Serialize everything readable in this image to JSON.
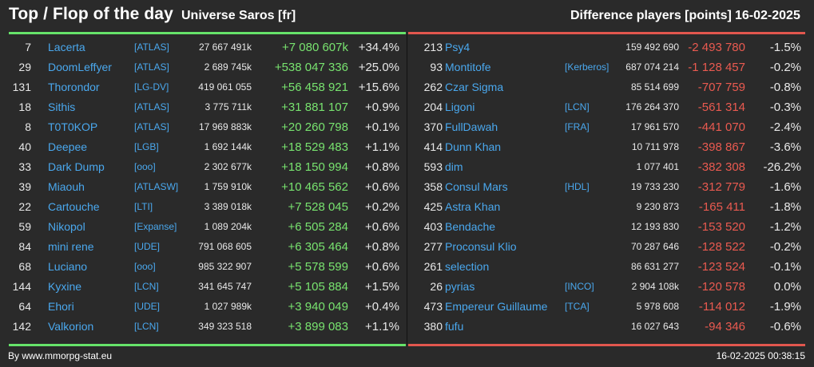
{
  "header": {
    "title": "Top / Flop of the day",
    "universe": "Universe Saros [fr]",
    "difference_label": "Difference players [points]",
    "date": "16-02-2025"
  },
  "colors": {
    "background": "#2a2a2a",
    "top_accent": "#66e36a",
    "flop_accent": "#e2574e",
    "positive_diff": "#78e36f",
    "negative_diff": "#ea5a50",
    "link": "#4aa8ee"
  },
  "top": [
    {
      "rank": "7",
      "name": "Lacerta",
      "alliance": "[ATLAS]",
      "points": "27 667 491k",
      "diff": "+7 080 607k",
      "pct": "+34.4%"
    },
    {
      "rank": "29",
      "name": "DoomLeffyer",
      "alliance": "[ATLAS]",
      "points": "2 689 745k",
      "diff": "+538 047 336",
      "pct": "+25.0%"
    },
    {
      "rank": "131",
      "name": "Thorondor",
      "alliance": "[LG-DV]",
      "points": "419 061 055",
      "diff": "+56 458 921",
      "pct": "+15.6%"
    },
    {
      "rank": "18",
      "name": "Sithis",
      "alliance": "[ATLAS]",
      "points": "3 775 711k",
      "diff": "+31 881 107",
      "pct": "+0.9%"
    },
    {
      "rank": "8",
      "name": "T0T0KOP",
      "alliance": "[ATLAS]",
      "points": "17 969 883k",
      "diff": "+20 260 798",
      "pct": "+0.1%"
    },
    {
      "rank": "40",
      "name": "Deepee",
      "alliance": "[LGB]",
      "points": "1 692 144k",
      "diff": "+18 529 483",
      "pct": "+1.1%"
    },
    {
      "rank": "33",
      "name": "Dark Dump",
      "alliance": "[ooo]",
      "points": "2 302 677k",
      "diff": "+18 150 994",
      "pct": "+0.8%"
    },
    {
      "rank": "39",
      "name": "Miaouh",
      "alliance": "[ATLASW]",
      "points": "1 759 910k",
      "diff": "+10 465 562",
      "pct": "+0.6%"
    },
    {
      "rank": "22",
      "name": "Cartouche",
      "alliance": "[LTI]",
      "points": "3 389 018k",
      "diff": "+7 528 045",
      "pct": "+0.2%"
    },
    {
      "rank": "59",
      "name": "Nikopol",
      "alliance": "[Expanse]",
      "points": "1 089 204k",
      "diff": "+6 505 284",
      "pct": "+0.6%"
    },
    {
      "rank": "84",
      "name": "mini rene",
      "alliance": "[UDE]",
      "points": "791 068 605",
      "diff": "+6 305 464",
      "pct": "+0.8%"
    },
    {
      "rank": "68",
      "name": "Luciano",
      "alliance": "[ooo]",
      "points": "985 322 907",
      "diff": "+5 578 599",
      "pct": "+0.6%"
    },
    {
      "rank": "144",
      "name": "Kyxine",
      "alliance": "[LCN]",
      "points": "341 645 747",
      "diff": "+5 105 884",
      "pct": "+1.5%"
    },
    {
      "rank": "64",
      "name": "Ehori",
      "alliance": "[UDE]",
      "points": "1 027 989k",
      "diff": "+3 940 049",
      "pct": "+0.4%"
    },
    {
      "rank": "142",
      "name": "Valkorion",
      "alliance": "[LCN]",
      "points": "349 323 518",
      "diff": "+3 899 083",
      "pct": "+1.1%"
    }
  ],
  "flop": [
    {
      "rank": "213",
      "name": "Psy4",
      "alliance": "",
      "points": "159 492 690",
      "diff": "-2 493 780",
      "pct": "-1.5%"
    },
    {
      "rank": "93",
      "name": "Montitofe",
      "alliance": "[Kerberos]",
      "points": "687 074 214",
      "diff": "-1 128 457",
      "pct": "-0.2%"
    },
    {
      "rank": "262",
      "name": "Czar Sigma",
      "alliance": "",
      "points": "85 514 699",
      "diff": "-707 759",
      "pct": "-0.8%"
    },
    {
      "rank": "204",
      "name": "Ligoni",
      "alliance": "[LCN]",
      "points": "176 264 370",
      "diff": "-561 314",
      "pct": "-0.3%"
    },
    {
      "rank": "370",
      "name": "FullDawah",
      "alliance": "[FRA]",
      "points": "17 961 570",
      "diff": "-441 070",
      "pct": "-2.4%"
    },
    {
      "rank": "414",
      "name": "Dunn Khan",
      "alliance": "",
      "points": "10 711 978",
      "diff": "-398 867",
      "pct": "-3.6%"
    },
    {
      "rank": "593",
      "name": "dim",
      "alliance": "",
      "points": "1 077 401",
      "diff": "-382 308",
      "pct": "-26.2%"
    },
    {
      "rank": "358",
      "name": "Consul Mars",
      "alliance": "[HDL]",
      "points": "19 733 230",
      "diff": "-312 779",
      "pct": "-1.6%"
    },
    {
      "rank": "425",
      "name": "Astra Khan",
      "alliance": "",
      "points": "9 230 873",
      "diff": "-165 411",
      "pct": "-1.8%"
    },
    {
      "rank": "403",
      "name": "Bendache",
      "alliance": "",
      "points": "12 193 830",
      "diff": "-153 520",
      "pct": "-1.2%"
    },
    {
      "rank": "277",
      "name": "Proconsul Klio",
      "alliance": "",
      "points": "70 287 646",
      "diff": "-128 522",
      "pct": "-0.2%"
    },
    {
      "rank": "261",
      "name": "selection",
      "alliance": "",
      "points": "86 631 277",
      "diff": "-123 524",
      "pct": "-0.1%"
    },
    {
      "rank": "26",
      "name": "pyrias",
      "alliance": "[INCO]",
      "points": "2 904 108k",
      "diff": "-120 578",
      "pct": "0.0%"
    },
    {
      "rank": "473",
      "name": "Empereur Guillaume",
      "alliance": "[TCA]",
      "points": "5 978 608",
      "diff": "-114 012",
      "pct": "-1.9%"
    },
    {
      "rank": "380",
      "name": "fufu",
      "alliance": "",
      "points": "16 027 643",
      "diff": "-94 346",
      "pct": "-0.6%"
    }
  ],
  "footer": {
    "source": "By www.mmorpg-stat.eu",
    "timestamp": "16-02-2025 00:38:15"
  }
}
